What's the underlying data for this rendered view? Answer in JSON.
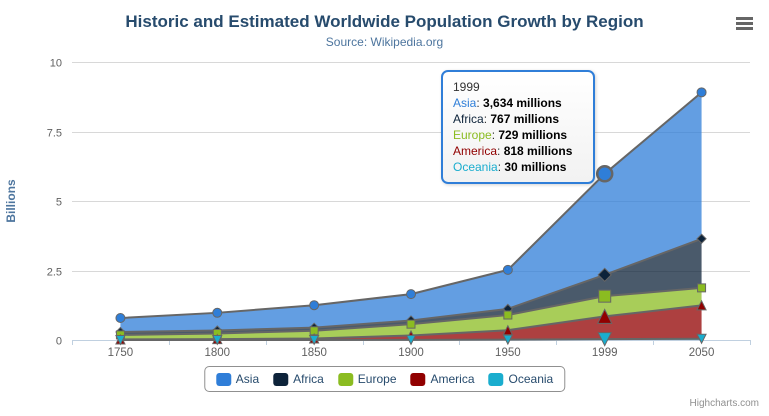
{
  "credit": "Highcharts.com",
  "tooltip": {
    "header": "1999",
    "border_color": "#2f7ed8",
    "rows": [
      {
        "label": "Asia",
        "color": "#2f7ed8",
        "value": "3,634 millions"
      },
      {
        "label": "Africa",
        "color": "#0d233a",
        "value": "767 millions"
      },
      {
        "label": "Europe",
        "color": "#8bbc21",
        "value": "729 millions"
      },
      {
        "label": "America",
        "color": "#910000",
        "value": "818 millions"
      },
      {
        "label": "Oceania",
        "color": "#1aadce",
        "value": "30 millions"
      }
    ]
  },
  "chart_data": {
    "type": "area",
    "stacking": "normal",
    "title": "Historic and Estimated Worldwide Population Growth by Region",
    "subtitle": "Source: Wikipedia.org",
    "categories": [
      "1750",
      "1800",
      "1850",
      "1900",
      "1950",
      "1999",
      "2050"
    ],
    "xlabel": "",
    "ylabel": "Billions",
    "ylim": [
      0,
      10
    ],
    "yticks": [
      0,
      2.5,
      5,
      7.5,
      10
    ],
    "values_unit": "millions",
    "grid": "horizontal",
    "legend_position": "bottom",
    "line_color": "#666666",
    "fill_opacity": 0.75,
    "hover_category_index": 5,
    "series": [
      {
        "name": "Asia",
        "color": "#2f7ed8",
        "marker": "circle",
        "values": [
          502,
          635,
          809,
          947,
          1402,
          3634,
          5268
        ]
      },
      {
        "name": "Africa",
        "color": "#0d233a",
        "marker": "diamond",
        "values": [
          106,
          107,
          111,
          133,
          221,
          767,
          1766
        ]
      },
      {
        "name": "Europe",
        "color": "#8bbc21",
        "marker": "square",
        "values": [
          163,
          203,
          276,
          408,
          547,
          729,
          628
        ]
      },
      {
        "name": "America",
        "color": "#910000",
        "marker": "triangle",
        "values": [
          18,
          31,
          54,
          156,
          339,
          818,
          1201
        ]
      },
      {
        "name": "Oceania",
        "color": "#1aadce",
        "marker": "triangle-down",
        "values": [
          2,
          2,
          2,
          6,
          13,
          30,
          46
        ]
      }
    ]
  }
}
